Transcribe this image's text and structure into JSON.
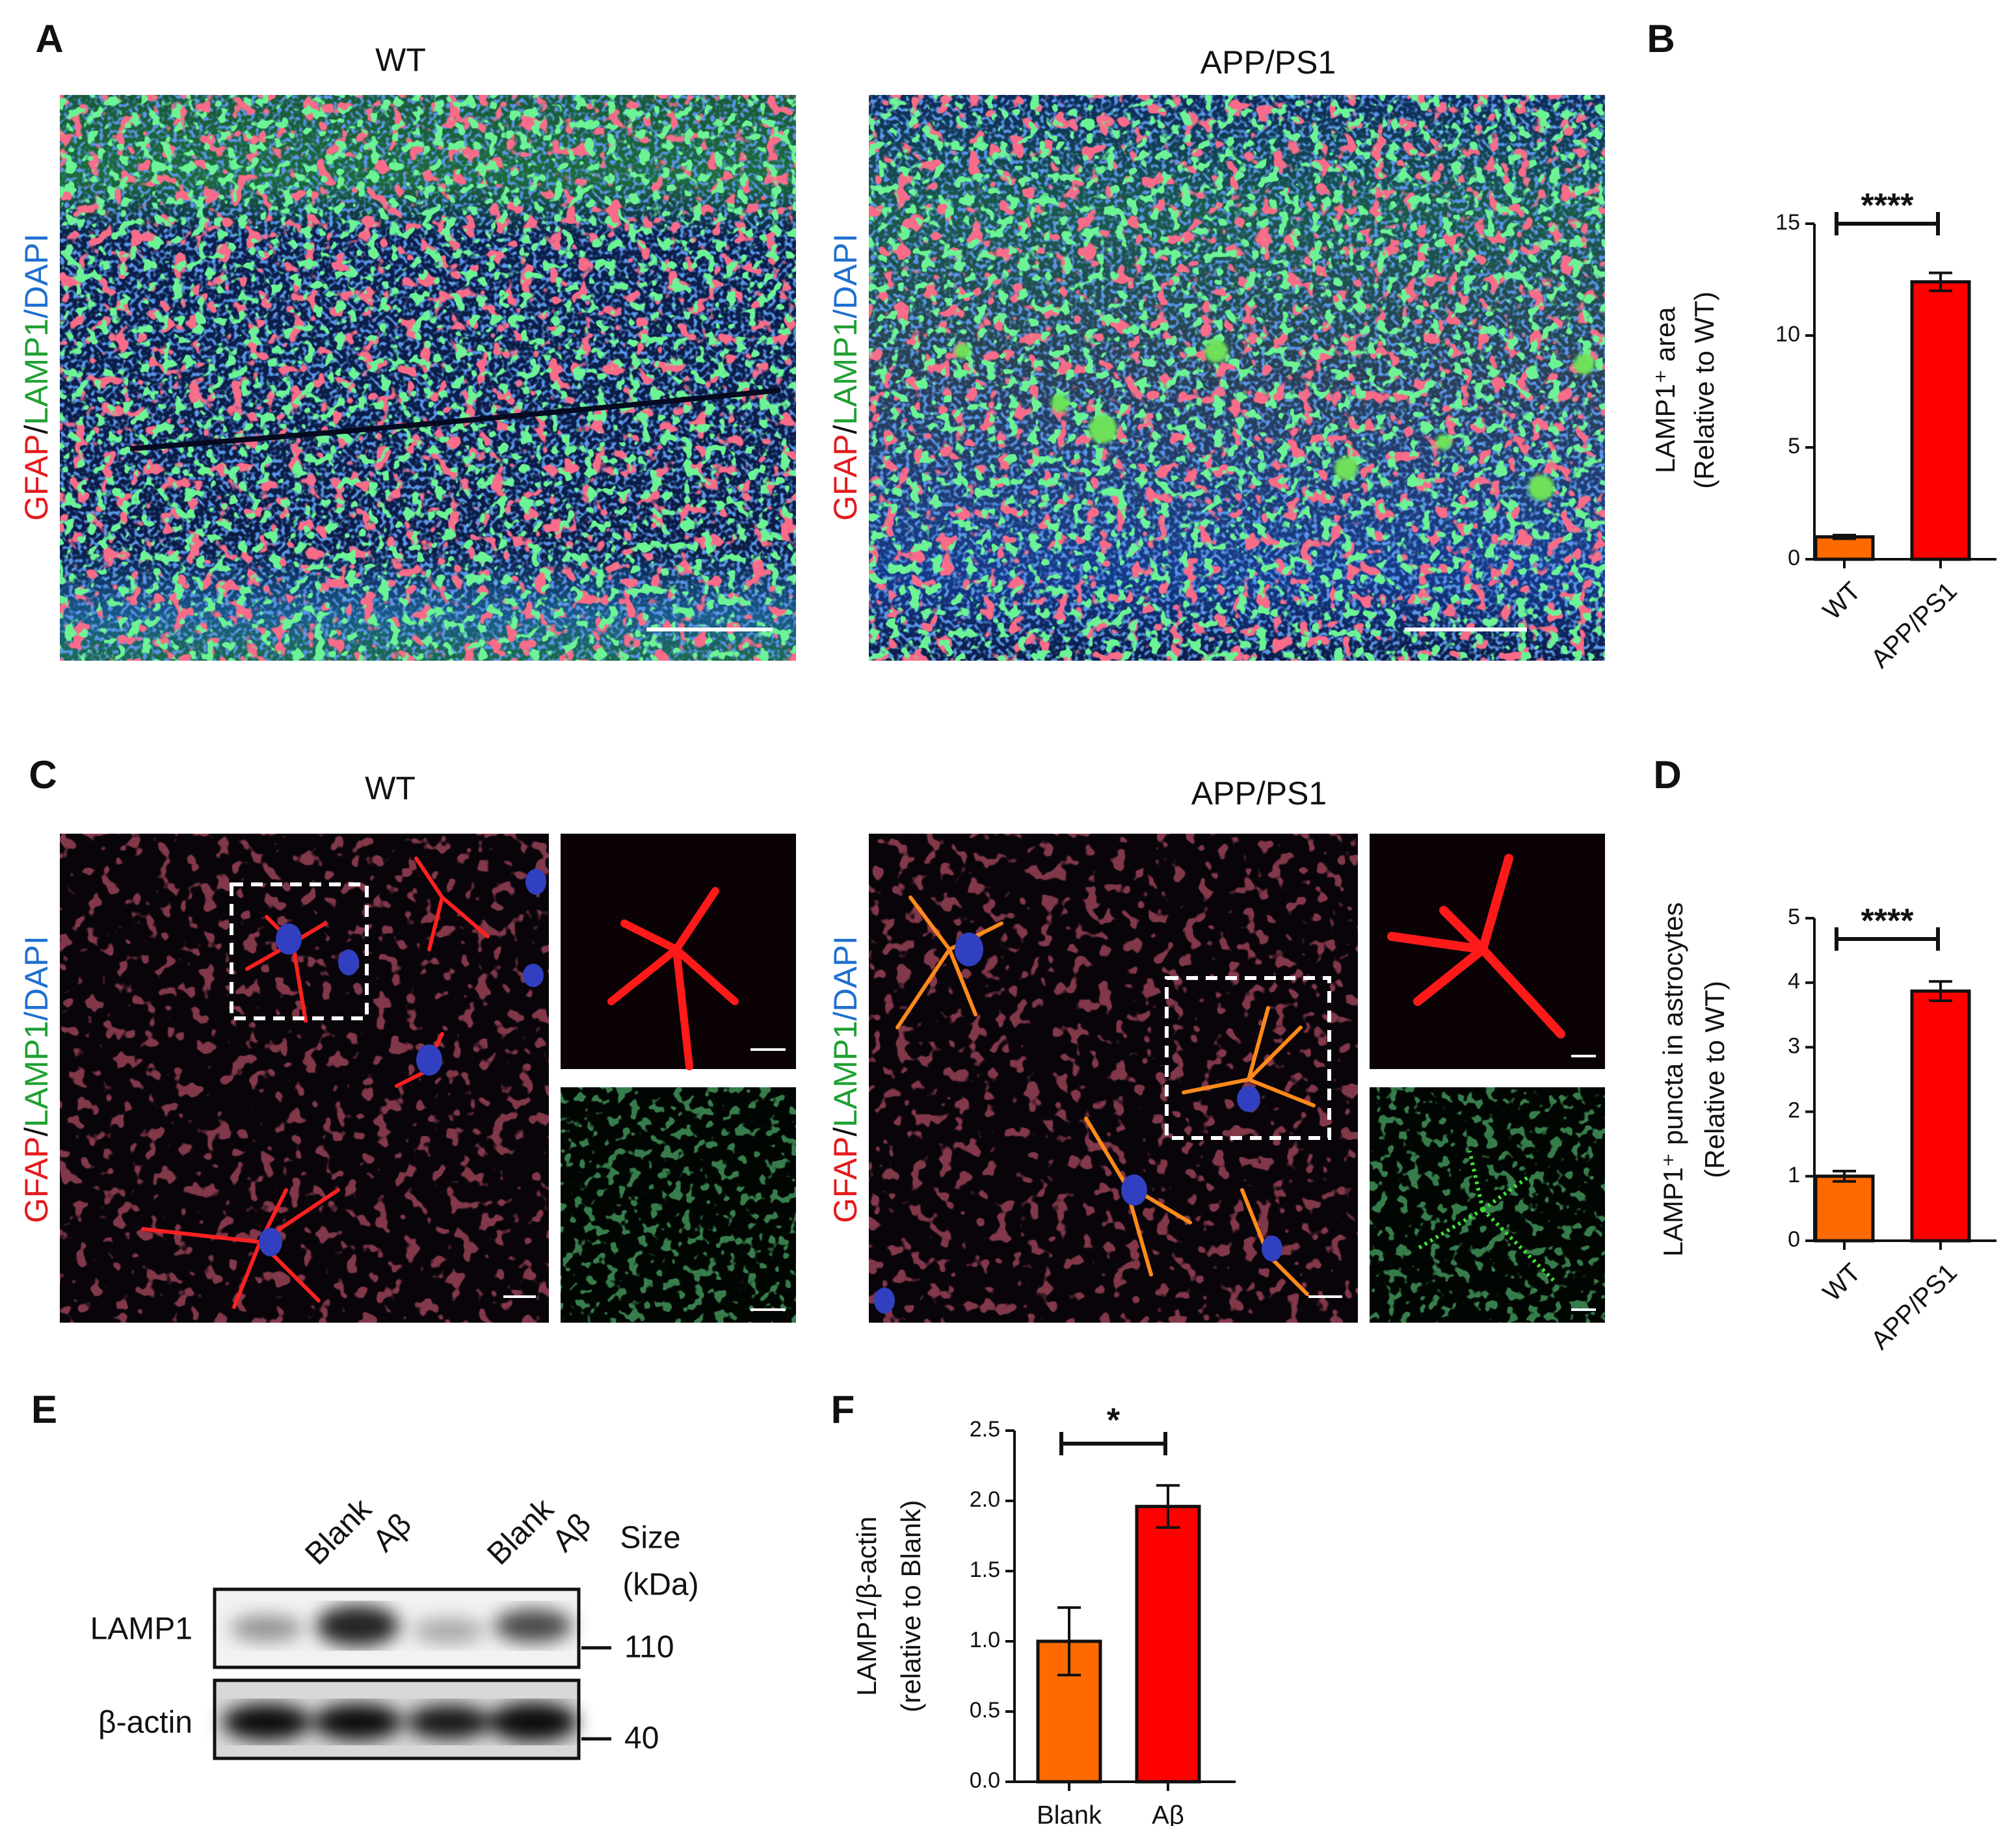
{
  "panel_labels": [
    "A",
    "B",
    "C",
    "D",
    "E",
    "F"
  ],
  "panel_a": {
    "titles": [
      "WT",
      "APP/PS1"
    ],
    "stain": [
      {
        "text": "GFAP",
        "color": "#e41a1c"
      },
      {
        "text": "/",
        "color": "#111111"
      },
      {
        "text": "LAMP1",
        "color": "#1fa032"
      },
      {
        "text": "/DAPI",
        "color": "#1f6fd0"
      }
    ]
  },
  "panel_c": {
    "titles": [
      "WT",
      "APP/PS1"
    ],
    "stain": [
      {
        "text": "GFAP",
        "color": "#e41a1c"
      },
      {
        "text": "/",
        "color": "#111111"
      },
      {
        "text": "LAMP1",
        "color": "#1fa032"
      },
      {
        "text": "/DAPI",
        "color": "#1f6fd0"
      }
    ]
  },
  "panel_e": {
    "lanes": [
      "Blank",
      "Aβ",
      "Blank",
      "Aβ"
    ],
    "size_label": [
      "Size",
      "(kDa)"
    ],
    "bands": [
      "LAMP1",
      "β-actin"
    ],
    "markers": [
      "110",
      "40"
    ]
  },
  "chart_data": [
    {
      "type": "bar",
      "ylabel": [
        "LAMP1⁺ area",
        "(Relative to WT)"
      ],
      "categories": [
        "WT",
        "APP/PS1"
      ],
      "values": [
        1,
        12.4
      ],
      "errors": [
        0.08,
        0.4
      ],
      "colors": [
        "#ff6a00",
        "#ff0000"
      ],
      "ylim": [
        0,
        15
      ],
      "yticks": [
        0,
        5,
        10,
        15
      ],
      "significance": "****"
    },
    {
      "type": "bar",
      "ylabel": [
        "LAMP1⁺ puncta in astrocytes",
        "(Relative to WT)"
      ],
      "categories": [
        "WT",
        "APP/PS1"
      ],
      "values": [
        1,
        3.87
      ],
      "errors": [
        0.08,
        0.15
      ],
      "colors": [
        "#ff6a00",
        "#ff0000"
      ],
      "ylim": [
        0,
        5
      ],
      "yticks": [
        0,
        1,
        2,
        3,
        4,
        5
      ],
      "significance": "****"
    },
    {
      "type": "bar",
      "ylabel": [
        "LAMP1/β-actin",
        "(relative to Blank)"
      ],
      "categories": [
        "Blank",
        "Aβ"
      ],
      "values": [
        1.0,
        1.96
      ],
      "errors": [
        0.24,
        0.15
      ],
      "colors": [
        "#ff6a00",
        "#ff0000"
      ],
      "ylim": [
        0,
        2.5
      ],
      "yticks": [
        {
          "value": 0,
          "label": "0.0"
        },
        0.5,
        {
          "value": 1,
          "label": "1.0"
        },
        1.5,
        {
          "value": 2,
          "label": "2.0"
        },
        2.5
      ],
      "significance": "*"
    }
  ]
}
